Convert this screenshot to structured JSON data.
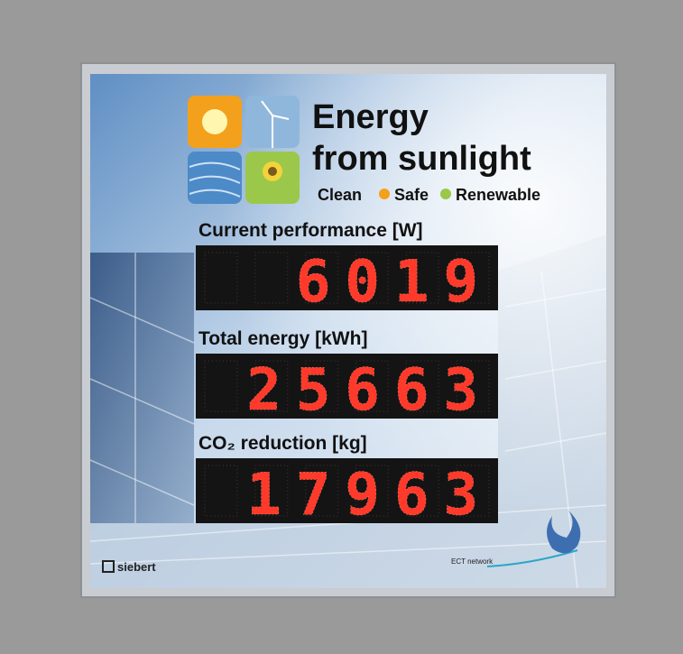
{
  "title": {
    "line1": "Energy",
    "line2": "from sunlight"
  },
  "tagline": [
    "Clean",
    "Safe",
    "Renewable"
  ],
  "displays": [
    {
      "label": "Current performance [W]",
      "value": 6019
    },
    {
      "label": "Total energy [kWh]",
      "value": 25663
    },
    {
      "label": "CO₂ reduction [kg]",
      "value": 17963
    }
  ],
  "footer": {
    "brand": "siebert",
    "network": "ECT network"
  }
}
